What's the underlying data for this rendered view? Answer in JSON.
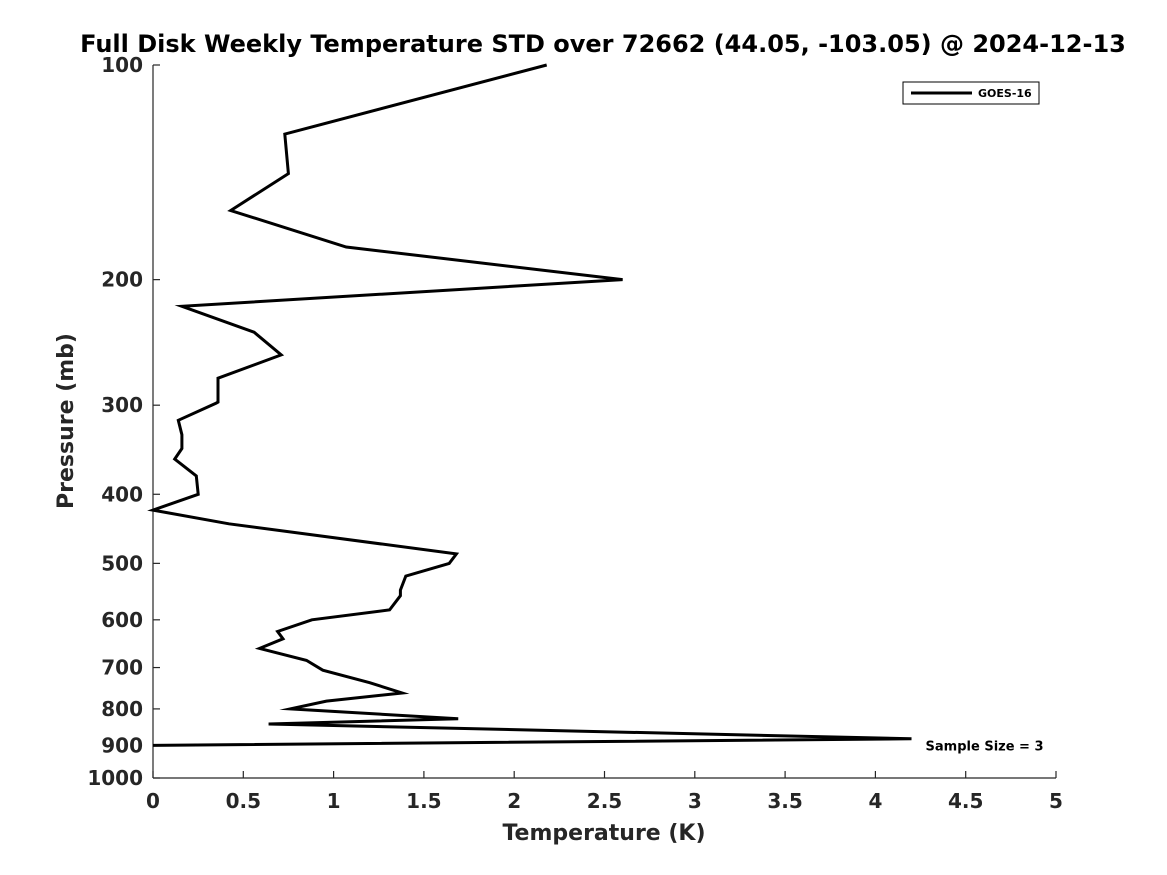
{
  "chart_data": {
    "type": "line",
    "title": "Full Disk Weekly Temperature STD over 72662 (44.05, -103.05) @ 2024-12-13",
    "xlabel": "Temperature (K)",
    "ylabel": "Pressure (mb)",
    "xlim": [
      0,
      5
    ],
    "ylim": [
      100,
      1000
    ],
    "yscale": "log",
    "yreversed": true,
    "x_ticks": [
      0,
      0.5,
      1,
      1.5,
      2,
      2.5,
      3,
      3.5,
      4,
      4.5,
      5
    ],
    "x_tick_labels": [
      "0",
      "0.5",
      "1",
      "1.5",
      "2",
      "2.5",
      "3",
      "3.5",
      "4",
      "4.5",
      "5"
    ],
    "y_ticks": [
      100,
      200,
      300,
      400,
      500,
      600,
      700,
      800,
      900,
      1000
    ],
    "y_tick_labels": [
      "100",
      "200",
      "300",
      "400",
      "500",
      "600",
      "700",
      "800",
      "900",
      "1000"
    ],
    "grid": false,
    "legend_position": "top-right",
    "series": [
      {
        "name": "GOES-16",
        "color": "#000000",
        "x": [
          2.18,
          0.73,
          0.75,
          0.43,
          1.07,
          2.6,
          0.16,
          0.56,
          0.71,
          0.36,
          0.36,
          0.35,
          0.14,
          0.16,
          0.16,
          0.12,
          0.24,
          0.25,
          0.0,
          0.42,
          1.68,
          1.64,
          1.4,
          1.37,
          1.37,
          1.31,
          0.88,
          0.69,
          0.72,
          0.59,
          0.85,
          0.94,
          1.2,
          1.38,
          0.96,
          0.76,
          1.69,
          0.64,
          4.2,
          0.0
        ],
        "y": [
          100,
          125,
          142,
          160,
          180,
          200,
          218,
          237,
          255,
          275,
          297,
          298,
          315,
          330,
          345,
          357,
          377,
          400,
          421,
          440,
          485,
          500,
          521,
          545,
          555,
          581,
          600,
          623,
          638,
          658,
          684,
          706,
          735,
          760,
          780,
          800,
          826,
          840,
          881,
          900
        ]
      }
    ],
    "annotations": [
      {
        "text": "Sample Size = 3",
        "x": 4.25,
        "y": 900
      }
    ]
  }
}
